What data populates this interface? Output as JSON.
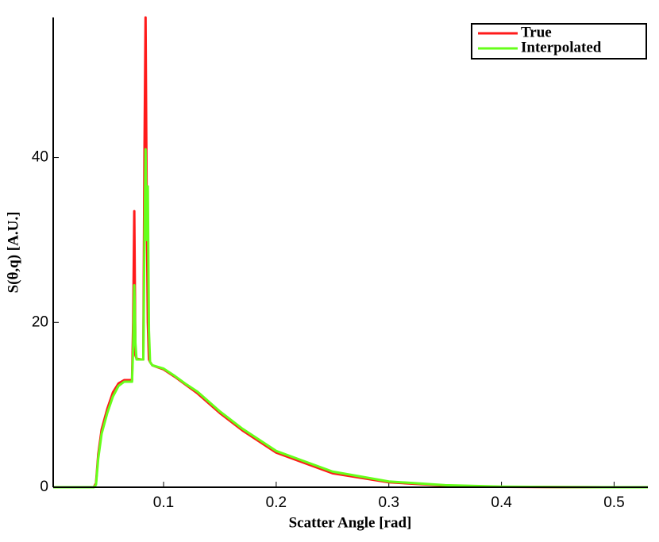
{
  "chart_data": {
    "type": "line",
    "x_label": "Scatter Angle [rad]",
    "y_label": "S(θ,q) [A.U.]",
    "x": [
      0.002,
      0.038,
      0.04,
      0.042,
      0.045,
      0.05,
      0.055,
      0.06,
      0.065,
      0.07,
      0.072,
      0.073,
      0.074,
      0.075,
      0.076,
      0.08,
      0.082,
      0.083,
      0.084,
      0.085,
      0.086,
      0.087,
      0.088,
      0.09,
      0.1,
      0.11,
      0.12,
      0.13,
      0.15,
      0.17,
      0.2,
      0.25,
      0.3,
      0.35,
      0.4,
      0.45,
      0.5,
      0.53
    ],
    "series": [
      {
        "name": "True",
        "color": "#ff1a1a",
        "values": [
          0,
          0,
          0.5,
          4,
          7,
          9.5,
          11.5,
          12.6,
          13,
          13,
          13,
          20,
          33.5,
          16,
          15.6,
          15.5,
          15.5,
          40,
          57,
          35,
          20,
          15.5,
          15.2,
          14.8,
          14.3,
          13.4,
          12.4,
          11.4,
          9,
          6.9,
          4.2,
          1.7,
          0.6,
          0.2,
          0.05,
          0.01,
          0,
          0
        ]
      },
      {
        "name": "Interpolated",
        "color": "#66ff1a",
        "values": [
          0,
          0,
          0.3,
          3.5,
          6.5,
          9,
          11,
          12.3,
          12.8,
          12.8,
          12.8,
          17,
          24.5,
          17.5,
          15.5,
          15.5,
          15.5,
          30,
          41,
          30,
          36.5,
          19,
          15.2,
          14.8,
          14.4,
          13.5,
          12.5,
          11.6,
          9.2,
          7.1,
          4.4,
          1.9,
          0.7,
          0.25,
          0.07,
          0.02,
          0,
          0
        ]
      }
    ],
    "xlim": [
      0.002,
      0.53
    ],
    "ylim": [
      0,
      57
    ],
    "xticks": [
      0.1,
      0.2,
      0.3,
      0.4,
      0.5
    ],
    "yticks": [
      0,
      20,
      40
    ],
    "legend": "top-right"
  }
}
